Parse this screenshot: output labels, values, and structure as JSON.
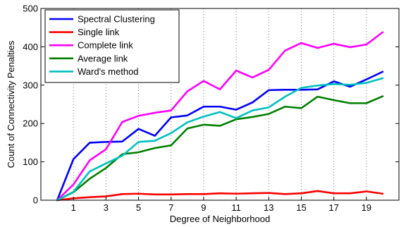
{
  "chart_data": {
    "type": "line",
    "title": "",
    "xlabel": "Degree of Neighborhood",
    "ylabel": "Count of Connectivity Penalties",
    "xlim": [
      -1,
      21
    ],
    "ylim": [
      0,
      500
    ],
    "x_ticks": [
      1,
      3,
      5,
      7,
      9,
      11,
      13,
      15,
      17,
      19
    ],
    "y_ticks": [
      0,
      100,
      200,
      300,
      400,
      500
    ],
    "grid": "vertical dotted at x ticks",
    "legend_position": "top-left",
    "x": [
      0,
      1,
      2,
      3,
      4,
      5,
      6,
      7,
      8,
      9,
      10,
      11,
      12,
      13,
      14,
      15,
      16,
      17,
      18,
      19,
      20
    ],
    "series": [
      {
        "name": "Spectral Clustering",
        "color": "#0000ff",
        "values": [
          0,
          107,
          150,
          152,
          153,
          186,
          168,
          216,
          221,
          244,
          244,
          236,
          255,
          287,
          288,
          288,
          289,
          310,
          296,
          315,
          335
        ]
      },
      {
        "name": "Single link",
        "color": "#ff0000",
        "values": [
          0,
          5,
          8,
          10,
          16,
          17,
          15,
          15,
          16,
          16,
          18,
          17,
          18,
          19,
          16,
          18,
          24,
          18,
          18,
          23,
          17
        ]
      },
      {
        "name": "Complete link",
        "color": "#ff00ff",
        "values": [
          0,
          41,
          104,
          133,
          204,
          220,
          228,
          234,
          284,
          311,
          289,
          338,
          320,
          340,
          390,
          410,
          397,
          408,
          399,
          406,
          438
        ]
      },
      {
        "name": "Average link",
        "color": "#008000",
        "values": [
          0,
          21,
          56,
          84,
          120,
          125,
          136,
          143,
          187,
          197,
          194,
          211,
          217,
          225,
          244,
          240,
          270,
          261,
          253,
          253,
          271
        ]
      },
      {
        "name": "Ward's method",
        "color": "#00c0c0",
        "values": [
          0,
          22,
          75,
          96,
          116,
          152,
          155,
          175,
          203,
          218,
          230,
          214,
          234,
          242,
          270,
          293,
          299,
          303,
          301,
          306,
          318
        ]
      }
    ]
  }
}
